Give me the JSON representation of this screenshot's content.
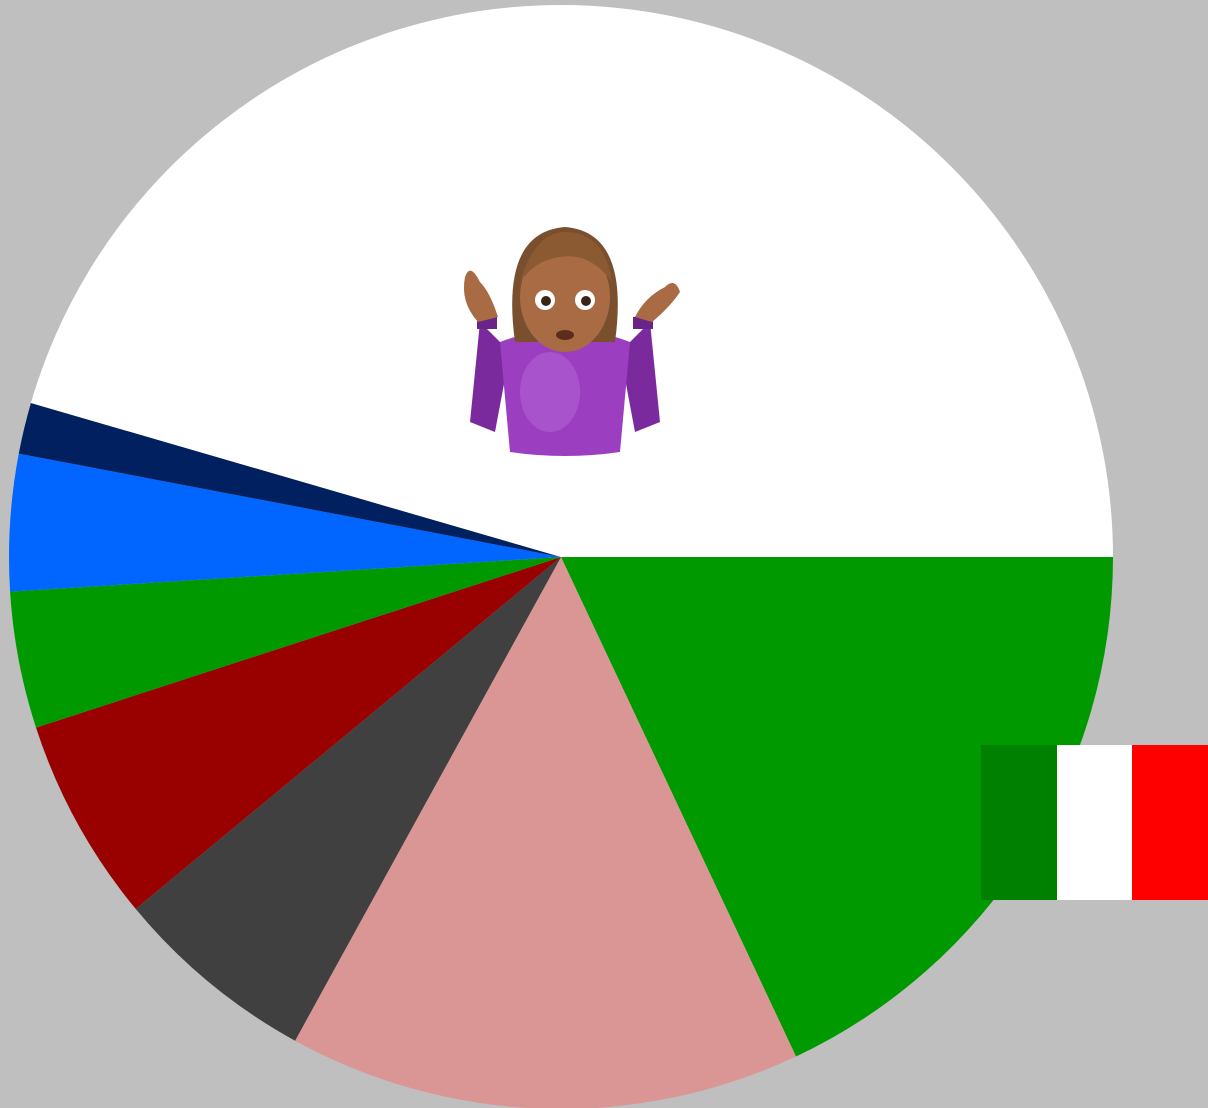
{
  "chart_data": {
    "type": "pie",
    "title": "",
    "start_angle_deg": 0,
    "direction": "clockwise",
    "slices": [
      {
        "value": 18.0,
        "color": "#009900"
      },
      {
        "value": 15.0,
        "color": "#d99694"
      },
      {
        "value": 6.0,
        "color": "#404040"
      },
      {
        "value": 6.0,
        "color": "#990000"
      },
      {
        "value": 4.0,
        "color": "#009900"
      },
      {
        "value": 4.0,
        "color": "#0066ff"
      },
      {
        "value": 1.5,
        "color": "#002060"
      },
      {
        "value": 45.5,
        "color": "#ffffff"
      }
    ]
  },
  "decorations": {
    "shrug_icon": "person-shrugging-emoji",
    "flag_icon": "italy-flag",
    "flag_colors": [
      "#008000",
      "#ffffff",
      "#ff0000"
    ]
  },
  "colors": {
    "background": "#bfbfbf"
  }
}
